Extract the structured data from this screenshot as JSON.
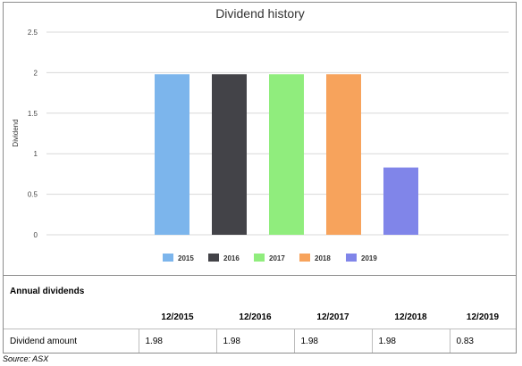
{
  "chart_data": {
    "type": "bar",
    "title": "Dividend history",
    "ylabel": "Dividend",
    "xlabel": "",
    "ylim": [
      0,
      2.5
    ],
    "yticks": [
      "0",
      "0.5",
      "1",
      "1.5",
      "2",
      "2.5"
    ],
    "grid": true,
    "legend_position": "bottom",
    "series": [
      {
        "name": "2015",
        "value": 1.98,
        "color": "#7cb5ec"
      },
      {
        "name": "2016",
        "value": 1.98,
        "color": "#434348"
      },
      {
        "name": "2017",
        "value": 1.98,
        "color": "#90ed7d"
      },
      {
        "name": "2018",
        "value": 1.98,
        "color": "#f7a35c"
      },
      {
        "name": "2019",
        "value": 0.83,
        "color": "#8085e9"
      }
    ]
  },
  "table": {
    "title": "Annual dividends",
    "headers": [
      "",
      "12/2015",
      "12/2016",
      "12/2017",
      "12/2018",
      "12/2019"
    ],
    "row_label": "Dividend amount",
    "values": [
      "1.98",
      "1.98",
      "1.98",
      "1.98",
      "0.83"
    ]
  },
  "source": "Source: ASX"
}
